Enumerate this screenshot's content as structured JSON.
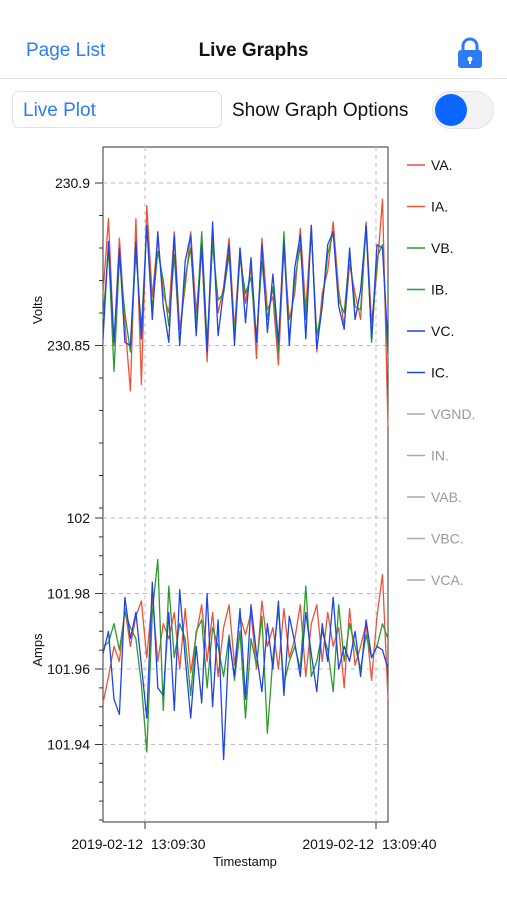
{
  "nav": {
    "back_label": "Page List",
    "title": "Live Graphs",
    "lock_icon": "lock-icon"
  },
  "controls": {
    "plot_field_value": "Live Plot",
    "options_label": "Show Graph Options",
    "options_toggle_on": false
  },
  "colors": {
    "accent": "#2d7cf6",
    "series_a": "#e8543a",
    "series_b": "#2e9a2e",
    "series_c": "#1f45e6",
    "inactive": "#aaaaaa"
  },
  "chart_data": {
    "type": "line",
    "xlabel": "Timestamp",
    "x_ticks": [
      {
        "date": "2019-02-12",
        "time": "13:09:30"
      },
      {
        "date": "2019-02-12",
        "time": "13:09:40"
      }
    ],
    "grid": true,
    "legend_position": "right",
    "legend": [
      {
        "name": "VA.",
        "color": "#e8543a",
        "active": true
      },
      {
        "name": "IA.",
        "color": "#e8543a",
        "active": true
      },
      {
        "name": "VB.",
        "color": "#2e9a2e",
        "active": true
      },
      {
        "name": "IB.",
        "color": "#2e9a2e",
        "active": true
      },
      {
        "name": "VC.",
        "color": "#1f45e6",
        "active": true
      },
      {
        "name": "IC.",
        "color": "#1f45e6",
        "active": true
      },
      {
        "name": "VGND.",
        "color": "#aaaaaa",
        "active": false
      },
      {
        "name": "IN.",
        "color": "#aaaaaa",
        "active": false
      },
      {
        "name": "VAB.",
        "color": "#aaaaaa",
        "active": false
      },
      {
        "name": "VBC.",
        "color": "#aaaaaa",
        "active": false
      },
      {
        "name": "VCA.",
        "color": "#aaaaaa",
        "active": false
      }
    ],
    "panels": [
      {
        "ylabel": "Volts",
        "ylim": [
          230.8,
          230.9
        ],
        "yticks": [
          "230.9",
          "230.85"
        ],
        "series": [
          {
            "name": "VA.",
            "color": "#e8543a",
            "values": [
              230.866,
              230.889,
              230.85,
              230.883,
              230.857,
              230.836,
              230.889,
              230.838,
              230.893,
              230.865,
              230.883,
              230.866,
              230.86,
              230.885,
              230.855,
              230.868,
              230.885,
              230.86,
              230.88,
              230.845,
              230.884,
              230.86,
              230.868,
              230.883,
              230.855,
              230.88,
              230.863,
              230.874,
              230.846,
              230.883,
              230.861,
              230.865,
              230.844,
              230.88,
              230.858,
              230.866,
              230.886,
              230.861,
              230.887,
              230.848,
              230.866,
              230.873,
              230.888,
              230.867,
              230.856,
              230.875,
              230.866,
              230.858,
              230.888,
              230.857,
              230.873,
              230.895,
              230.825
            ]
          },
          {
            "name": "VB.",
            "color": "#2e9a2e",
            "values": [
              230.858,
              230.88,
              230.842,
              230.877,
              230.86,
              230.848,
              230.879,
              230.855,
              230.887,
              230.861,
              230.879,
              230.87,
              230.856,
              230.878,
              230.851,
              230.871,
              230.88,
              230.856,
              230.885,
              230.851,
              230.881,
              230.864,
              230.866,
              230.878,
              230.853,
              230.877,
              230.866,
              230.871,
              230.852,
              230.876,
              230.858,
              230.868,
              230.848,
              230.885,
              230.852,
              230.87,
              230.881,
              230.858,
              230.885,
              230.853,
              230.862,
              230.878,
              230.885,
              230.864,
              230.86,
              230.878,
              230.862,
              230.861,
              230.887,
              230.851,
              230.877,
              230.881,
              230.846
            ]
          },
          {
            "name": "VC.",
            "color": "#1f45e6",
            "values": [
              230.852,
              230.882,
              230.851,
              230.88,
              230.851,
              230.85,
              230.882,
              230.852,
              230.887,
              230.858,
              230.885,
              230.862,
              230.851,
              230.884,
              230.85,
              230.876,
              230.884,
              230.853,
              230.881,
              230.848,
              230.888,
              230.853,
              230.867,
              230.881,
              230.85,
              230.88,
              230.857,
              230.877,
              230.851,
              230.881,
              230.854,
              230.872,
              230.851,
              230.882,
              230.85,
              230.874,
              230.884,
              230.852,
              230.887,
              230.849,
              230.862,
              230.881,
              230.885,
              230.862,
              230.855,
              230.88,
              230.858,
              230.867,
              230.887,
              230.852,
              230.881,
              230.88,
              230.85
            ]
          }
        ]
      },
      {
        "ylabel": "Amps",
        "ylim": [
          101.92,
          102.0
        ],
        "yticks": [
          "102",
          "101.98",
          "101.96",
          "101.94"
        ],
        "series": [
          {
            "name": "IA.",
            "color": "#e8543a",
            "values": [
              101.951,
              101.958,
              101.966,
              101.962,
              101.976,
              101.966,
              101.974,
              101.978,
              101.963,
              101.979,
              101.962,
              101.972,
              101.968,
              101.975,
              101.96,
              101.976,
              101.959,
              101.969,
              101.977,
              101.962,
              101.975,
              101.958,
              101.971,
              101.977,
              101.961,
              101.974,
              101.969,
              101.975,
              101.96,
              101.978,
              101.966,
              101.971,
              101.96,
              101.976,
              101.963,
              101.968,
              101.977,
              101.958,
              101.972,
              101.977,
              101.962,
              101.975,
              101.966,
              101.971,
              101.955,
              101.976,
              101.961,
              101.966,
              101.972,
              101.957,
              101.974,
              101.985,
              101.952
            ]
          },
          {
            "name": "IB.",
            "color": "#2e9a2e",
            "values": [
              101.966,
              101.967,
              101.972,
              101.965,
              101.975,
              101.971,
              101.968,
              101.956,
              101.938,
              101.975,
              101.989,
              101.949,
              101.982,
              101.963,
              101.972,
              101.968,
              101.953,
              101.97,
              101.973,
              101.955,
              101.971,
              101.966,
              101.958,
              101.969,
              101.957,
              101.97,
              101.947,
              101.968,
              101.961,
              101.974,
              101.943,
              101.963,
              101.976,
              101.956,
              101.962,
              101.966,
              101.96,
              101.982,
              101.958,
              101.962,
              101.97,
              101.965,
              101.954,
              101.977,
              101.962,
              101.972,
              101.966,
              101.96,
              101.969,
              101.963,
              101.966,
              101.972,
              101.968
            ]
          },
          {
            "name": "IC.",
            "color": "#1f45e6",
            "values": [
              101.964,
              101.97,
              101.952,
              101.948,
              101.979,
              101.968,
              101.975,
              101.961,
              101.947,
              101.983,
              101.955,
              101.953,
              101.975,
              101.949,
              101.981,
              101.963,
              101.947,
              101.966,
              101.951,
              101.98,
              101.95,
              101.973,
              101.936,
              101.968,
              101.958,
              101.976,
              101.952,
              101.977,
              101.964,
              101.954,
              101.972,
              101.96,
              101.978,
              101.953,
              101.974,
              101.967,
              101.958,
              101.975,
              101.964,
              101.954,
              101.972,
              101.962,
              101.979,
              101.96,
              101.966,
              101.962,
              101.97,
              101.958,
              101.973,
              101.963,
              101.966,
              101.965,
              101.96
            ]
          }
        ]
      }
    ]
  }
}
